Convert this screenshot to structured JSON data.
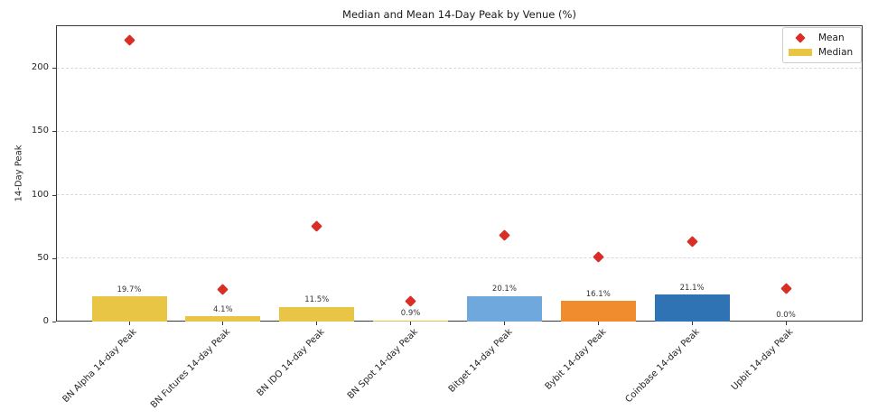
{
  "chart_data": {
    "type": "bar",
    "title": "Median and Mean 14-Day Peak by Venue (%)",
    "ylabel": "14-Day Peak",
    "xlabel": "",
    "categories": [
      "BN Alpha 14-day Peak",
      "BN Futures 14-day Peak",
      "BN IDO 14-day Peak",
      "BN Spot 14-day Peak",
      "Bitget 14-day Peak",
      "Bybit 14-day Peak",
      "Coinbase 14-day Peak",
      "Upbit 14-day Peak"
    ],
    "series": [
      {
        "name": "Mean",
        "type": "scatter",
        "marker": "diamond",
        "color": "#D92D26",
        "values": [
          222,
          25,
          75,
          16,
          68,
          51,
          63,
          26
        ]
      },
      {
        "name": "Median",
        "type": "bar",
        "values": [
          19.7,
          4.1,
          11.5,
          0.9,
          20.1,
          16.1,
          21.1,
          0.0
        ],
        "bar_labels": [
          "19.7%",
          "4.1%",
          "11.5%",
          "0.9%",
          "20.1%",
          "16.1%",
          "21.1%",
          "0.0%"
        ],
        "bar_colors": [
          "#E9C545",
          "#E9C545",
          "#E9C545",
          "#E9C545",
          "#6FA8DC",
          "#F08C2D",
          "#2F73B4",
          "#E9C545"
        ]
      }
    ],
    "yticks": [
      0,
      50,
      100,
      150,
      200
    ],
    "ytick_labels": [
      "0",
      "50",
      "100",
      "150",
      "200"
    ],
    "ylim": [
      0,
      233.5
    ],
    "grid": "dashed-horizontal",
    "legend_position": "upper-right",
    "legend_swatch_color": "#E9C545",
    "style": {
      "grid_color": "#d9d9d9",
      "frame_color": "#3a3a3a",
      "text_color": "#262626",
      "bar_label_color": "#333333"
    }
  }
}
